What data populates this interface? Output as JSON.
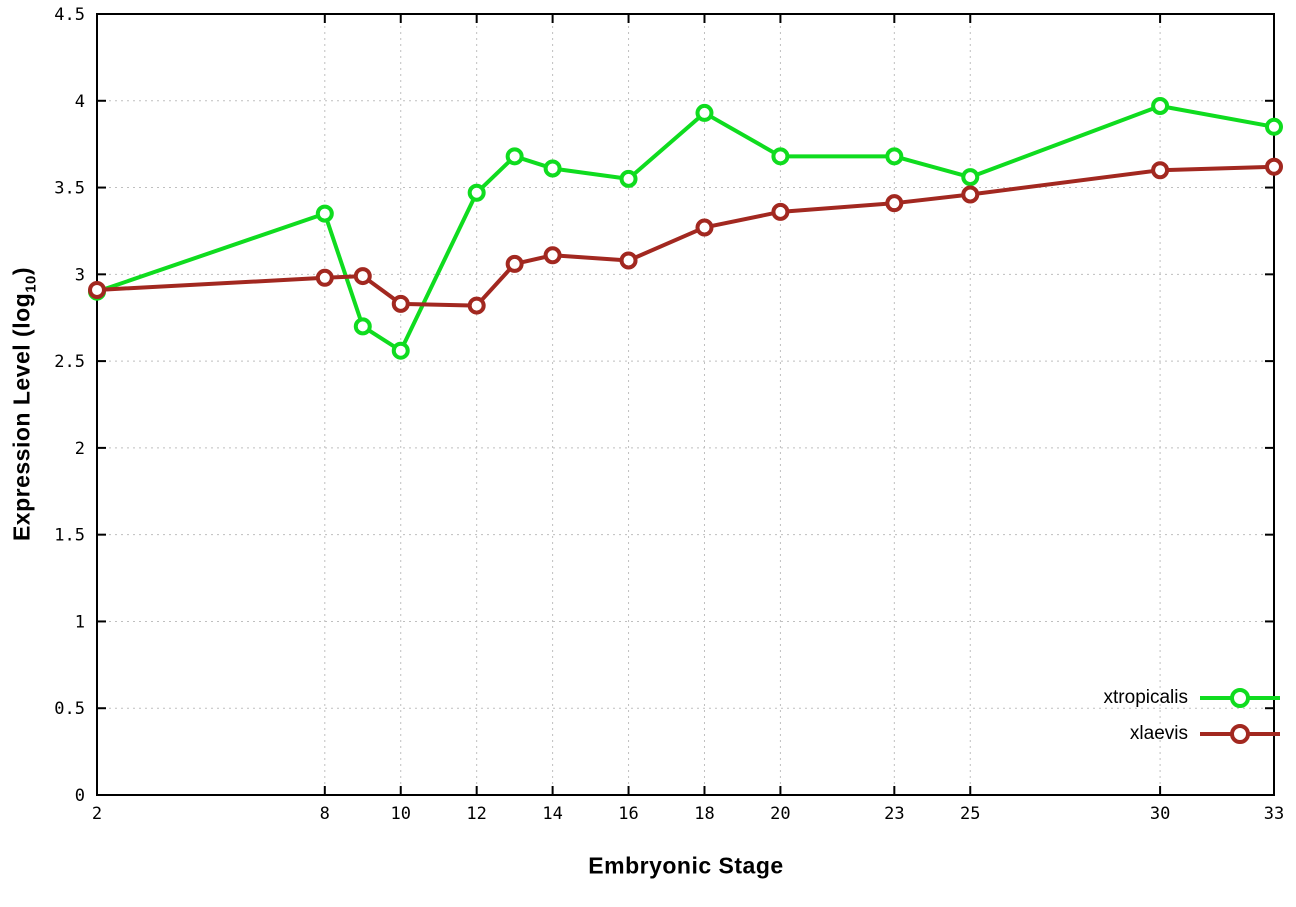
{
  "axes": {
    "x_label": "Embryonic Stage",
    "y_label_prefix": "Expression Level (log",
    "y_label_sub": "10",
    "y_label_suffix": ")"
  },
  "chart_data": {
    "type": "line",
    "title": "",
    "xlabel": "Embryonic Stage",
    "ylabel": "Expression Level (log10)",
    "xlim": [
      2,
      33
    ],
    "ylim": [
      0,
      4.5
    ],
    "grid": true,
    "legend_position": "bottom-right",
    "x_ticks": [
      2,
      8,
      10,
      12,
      14,
      16,
      18,
      20,
      23,
      25,
      30,
      33
    ],
    "y_ticks": [
      0,
      0.5,
      1,
      1.5,
      2,
      2.5,
      3,
      3.5,
      4,
      4.5
    ],
    "x": [
      2,
      8,
      9,
      10,
      12,
      13,
      14,
      16,
      18,
      20,
      23,
      25,
      30,
      33
    ],
    "series": [
      {
        "name": "xtropicalis",
        "color": "#0fdc1f",
        "values": [
          2.9,
          3.35,
          2.7,
          2.56,
          3.47,
          3.68,
          3.61,
          3.55,
          3.93,
          3.68,
          3.68,
          3.56,
          3.97,
          3.85
        ]
      },
      {
        "name": "xlaevis",
        "color": "#a22820",
        "values": [
          2.91,
          2.98,
          2.99,
          2.83,
          2.82,
          3.06,
          3.11,
          3.08,
          3.27,
          3.36,
          3.41,
          3.46,
          3.6,
          3.62
        ]
      }
    ]
  }
}
